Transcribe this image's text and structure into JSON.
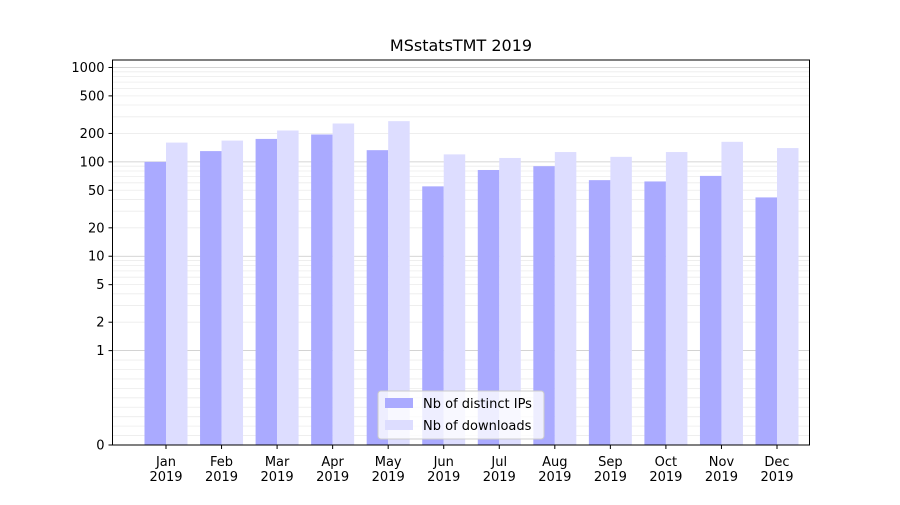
{
  "chart_data": {
    "type": "bar",
    "title": "MSstatsTMT 2019",
    "xlabel": "",
    "ylabel": "",
    "y_scale": "symlog",
    "ylim": [
      0,
      1200
    ],
    "y_ticks": [
      0,
      1,
      2,
      5,
      10,
      20,
      50,
      100,
      200,
      500,
      1000
    ],
    "grid": "horizontal",
    "legend_position": "bottom-center",
    "categories": [
      [
        "Jan",
        "2019"
      ],
      [
        "Feb",
        "2019"
      ],
      [
        "Mar",
        "2019"
      ],
      [
        "Apr",
        "2019"
      ],
      [
        "May",
        "2019"
      ],
      [
        "Jun",
        "2019"
      ],
      [
        "Jul",
        "2019"
      ],
      [
        "Aug",
        "2019"
      ],
      [
        "Sep",
        "2019"
      ],
      [
        "Oct",
        "2019"
      ],
      [
        "Nov",
        "2019"
      ],
      [
        "Dec",
        "2019"
      ]
    ],
    "series": [
      {
        "name": "Nb of distinct IPs",
        "color": "#aaaaff",
        "values": [
          100,
          130,
          175,
          195,
          133,
          55,
          82,
          90,
          64,
          62,
          71,
          42
        ]
      },
      {
        "name": "Nb of downloads",
        "color": "#ddddff",
        "values": [
          160,
          168,
          215,
          255,
          270,
          120,
          110,
          127,
          113,
          127,
          163,
          140
        ]
      }
    ]
  }
}
